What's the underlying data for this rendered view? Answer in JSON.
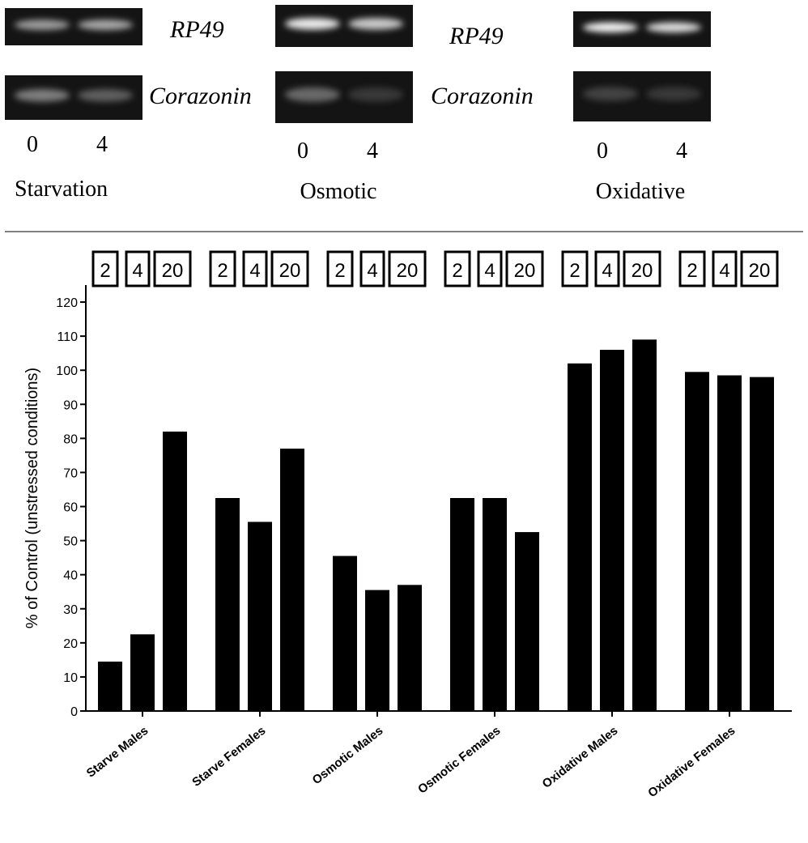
{
  "gel_panels": [
    {
      "condition": "Starvation",
      "lanes": [
        "0",
        "4"
      ],
      "rows": [
        {
          "gene": "RP49",
          "band_intensity": [
            0.55,
            0.6
          ]
        },
        {
          "gene": "Corazonin",
          "band_intensity": [
            0.4,
            0.25
          ]
        }
      ]
    },
    {
      "condition": "Osmotic",
      "lanes": [
        "0",
        "4"
      ],
      "rows": [
        {
          "gene": "RP49",
          "band_intensity": [
            0.9,
            0.75
          ]
        },
        {
          "gene": "Corazonin",
          "band_intensity": [
            0.3,
            0.08
          ]
        }
      ]
    },
    {
      "condition": "Oxidative",
      "lanes": [
        "0",
        "4"
      ],
      "rows": [
        {
          "gene": "RP49",
          "band_intensity": [
            0.95,
            0.85
          ]
        },
        {
          "gene": "Corazonin",
          "band_intensity": [
            0.12,
            0.08
          ]
        }
      ]
    }
  ],
  "chart_data": {
    "type": "bar",
    "ylabel": "% of Control (unstressed conditions)",
    "ylim": [
      0,
      125
    ],
    "yticks": [
      0,
      10,
      20,
      30,
      40,
      50,
      60,
      70,
      80,
      90,
      100,
      110,
      120
    ],
    "categories": [
      "Starve Males",
      "Starve Females",
      "Osmotic Males",
      "Osmotic Females",
      "Oxidative Males",
      "Oxidative Females"
    ],
    "timepoint_labels": [
      "2",
      "4",
      "20"
    ],
    "series": [
      {
        "values": [
          14.5,
          62.5,
          45.5,
          62.5,
          102,
          99.5
        ]
      },
      {
        "values": [
          22.5,
          55.5,
          35.5,
          62.5,
          106,
          98.5
        ]
      },
      {
        "values": [
          82,
          77,
          37,
          52.5,
          109,
          98
        ]
      }
    ],
    "bar_color": "#000000",
    "grid": false
  }
}
